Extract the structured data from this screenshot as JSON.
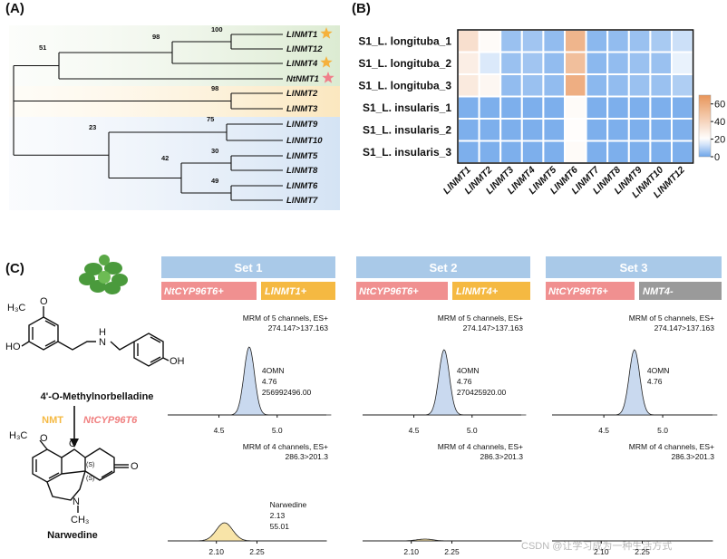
{
  "panel_a": {
    "label": "(A)",
    "leaves": [
      "LlNMT1",
      "LlNMT12",
      "LlNMT4",
      "NtNMT1",
      "LlNMT2",
      "LlNMT3",
      "LlNMT9",
      "LlNMT10",
      "LlNMT5",
      "LlNMT8",
      "LlNMT6",
      "LlNMT7"
    ],
    "support": [
      100,
      98,
      51,
      98,
      75,
      30,
      42,
      49,
      23
    ]
  },
  "panel_b": {
    "label": "(B)",
    "type": "heatmap",
    "rows": [
      "S1_L. longituba_1",
      "S1_L. longituba_2",
      "S1_L. longituba_3",
      "S1_L. insularis_1",
      "S1_L. insularis_2",
      "S1_L. insularis_3"
    ],
    "columns": [
      "LlNMT1",
      "LlNMT2",
      "LlNMT3",
      "LlNMT4",
      "LlNMT5",
      "LlNMT6",
      "LlNMT7",
      "LlNMT8",
      "LlNMT9",
      "LlNMT10",
      "LlNMT12"
    ],
    "values": [
      [
        35,
        22,
        6,
        7,
        5,
        55,
        4,
        5,
        6,
        8,
        13
      ],
      [
        28,
        15,
        6,
        7,
        5,
        50,
        4,
        5,
        6,
        6,
        17
      ],
      [
        30,
        24,
        5,
        6,
        5,
        58,
        4,
        5,
        6,
        6,
        9
      ],
      [
        2,
        2,
        2,
        2,
        2,
        22,
        2,
        2,
        2,
        2,
        2
      ],
      [
        2,
        2,
        2,
        2,
        2,
        21,
        2,
        2,
        2,
        2,
        2
      ],
      [
        2,
        2,
        2,
        2,
        2,
        22,
        2,
        2,
        2,
        2,
        2
      ]
    ],
    "colorbar_lim": [
      0,
      70
    ],
    "colorbar_ticks": [
      0,
      20,
      40,
      60
    ]
  },
  "panel_c": {
    "label": "(C)",
    "substrate": {
      "name": "4'-O-Methylnorbelladine",
      "atoms": [
        "H₃C",
        "O",
        "HO",
        "H",
        "N",
        "OH"
      ]
    },
    "enzymes": [
      "NMT",
      "NtCYP96T6"
    ],
    "product": {
      "name": "Narwedine",
      "atoms": [
        "H₃C",
        "O",
        "O",
        "(S)",
        "(S)",
        "O",
        "N",
        "CH₃"
      ]
    },
    "sets": [
      {
        "title": "Set 1",
        "enzymes": [
          "NtCYP96T6+",
          "LlNMT1+"
        ],
        "top": {
          "method": "MRM of 5 channels, ES+",
          "transition": "274.147>137.163",
          "xlim": [
            4.06,
            5.5
          ],
          "xticks": [
            4.5,
            {
              "value": 5,
              "label": "5.0"
            }
          ],
          "peak": {
            "name": "4OMN",
            "rt": 4.76,
            "area": "256992496.00"
          }
        },
        "bottom": {
          "method": "MRM of 4 channels, ES+",
          "transition": "286.3>201.3",
          "xlim": [
            1.92,
            2.54
          ],
          "xticks": [
            {
              "value": 2.1,
              "label": "2.10"
            },
            2.25
          ],
          "peak": {
            "name": "Narwedine",
            "rt": 2.13,
            "area": 55.01
          }
        }
      },
      {
        "title": "Set 2",
        "enzymes": [
          "NtCYP96T6+",
          "LlNMT4+"
        ],
        "top": {
          "method": "MRM of 5 channels, ES+",
          "transition": "274.147>137.163",
          "xlim": [
            4.06,
            5.5
          ],
          "xticks": [
            4.5,
            {
              "value": 5,
              "label": "5.0"
            }
          ],
          "peak": {
            "name": "4OMN",
            "rt": 4.76,
            "area": "270425920.00"
          }
        },
        "bottom": {
          "method": "MRM of 4 channels, ES+",
          "transition": "286.3>201.3",
          "xlim": [
            1.92,
            2.54
          ],
          "xticks": [
            {
              "value": 2.1,
              "label": "2.10"
            },
            2.25
          ]
        }
      },
      {
        "title": "Set 3",
        "enzymes": [
          "NtCYP96T6+",
          "NMT4-"
        ],
        "top": {
          "method": "MRM of 5 channels, ES+",
          "transition": "274.147>137.163",
          "xlim": [
            4.06,
            5.5
          ],
          "xticks": [
            4.5,
            {
              "value": 5,
              "label": "5.0"
            }
          ],
          "peak": {
            "name": "4OMN",
            "rt": 4.76
          }
        },
        "bottom": {
          "method": "MRM of 4 channels, ES+",
          "transition": "286.3>201.3",
          "xlim": [
            1.92,
            2.54
          ],
          "xticks": [
            {
              "value": 2.1,
              "label": "2.10"
            },
            2.25
          ]
        }
      }
    ]
  },
  "watermark": "CSDN @让学习成为一种生活方式"
}
